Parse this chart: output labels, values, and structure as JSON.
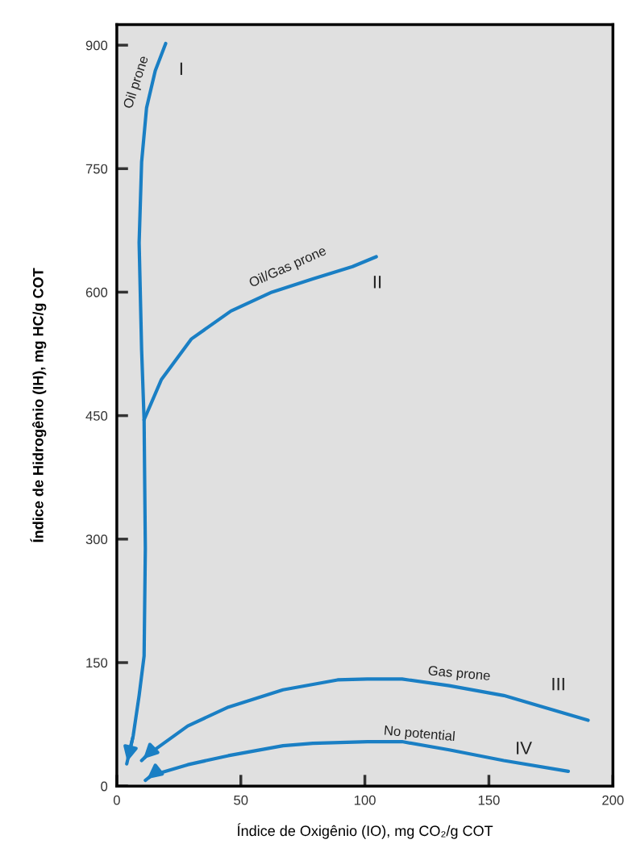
{
  "chart_data": {
    "type": "line",
    "xlabel": "Índice de Oxigênio (IO), mg CO₂/g COT",
    "ylabel": "Índice de Hidrogênio (IH), mg HC/g COT",
    "xlim": [
      0,
      200
    ],
    "ylim": [
      0,
      925
    ],
    "xticks": [
      0,
      50,
      100,
      150,
      200
    ],
    "yticks": [
      0,
      150,
      300,
      450,
      600,
      750,
      900
    ],
    "grid": false,
    "legend": false,
    "marker": "none",
    "line_style": "solid",
    "series": [
      {
        "color": "#1a7fc4",
        "x": [
          19.7,
          15.5,
          12,
          10,
          9,
          10,
          11,
          11.5,
          11,
          9,
          6.6,
          4
        ],
        "values": [
          902,
          869,
          824,
          758,
          660,
          530,
          445,
          289,
          158,
          110,
          61,
          27
        ]
      },
      {
        "color": "#1a7fc4",
        "x": [
          104.6,
          95,
          79,
          62.5,
          46,
          30,
          18,
          11
        ],
        "values": [
          643,
          631,
          616,
          600,
          577,
          543,
          494,
          445
        ]
      },
      {
        "color": "#1a7fc4",
        "x": [
          190,
          172,
          156,
          134,
          115,
          101,
          89,
          67,
          45,
          28.6,
          12,
          10
        ],
        "values": [
          80,
          96,
          110,
          122,
          130,
          130,
          129,
          117,
          96,
          73,
          37,
          31
        ]
      },
      {
        "color": "#1a7fc4",
        "x": [
          182,
          156,
          134,
          115,
          101,
          79,
          67,
          45,
          28.6,
          14,
          11.5
        ],
        "values": [
          18,
          31,
          44,
          54,
          54,
          52,
          49,
          37,
          26,
          13,
          7
        ]
      }
    ],
    "annotations": [
      "Oil prone",
      "I",
      "Oil/Gas prone",
      "II",
      "Gas prone",
      "III",
      "No potential",
      "IV"
    ]
  }
}
